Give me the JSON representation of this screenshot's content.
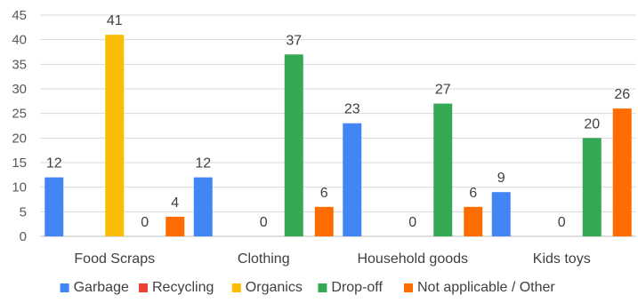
{
  "chart_data": {
    "type": "bar",
    "title": "",
    "xlabel": "",
    "ylabel": "",
    "ylim": [
      0,
      45
    ],
    "yticks": [
      0,
      5,
      10,
      15,
      20,
      25,
      30,
      35,
      40,
      45
    ],
    "grid": "horizontal",
    "legend_position": "bottom",
    "categories": [
      "Food Scraps",
      "Clothing",
      "Household goods",
      "Kids toys"
    ],
    "series": [
      {
        "name": "Garbage",
        "color": "#4285F4",
        "values": [
          12,
          12,
          23,
          9
        ]
      },
      {
        "name": "Recycling",
        "color": "#EA4335",
        "values": [
          null,
          null,
          null,
          null
        ]
      },
      {
        "name": "Organics",
        "color": "#FBBC04",
        "values": [
          41,
          0,
          0,
          0
        ]
      },
      {
        "name": "Drop-off",
        "color": "#34A853",
        "values": [
          0,
          37,
          27,
          20
        ]
      },
      {
        "name": "Not applicable / Other",
        "color": "#FF6D01",
        "values": [
          4,
          6,
          6,
          26
        ]
      }
    ],
    "data_labels": [
      {
        "text": "12"
      },
      {
        "text": "41"
      },
      {
        "text": "0"
      },
      {
        "text": "4"
      },
      {
        "text": "12"
      },
      {
        "text": "0"
      },
      {
        "text": "37"
      },
      {
        "text": "6"
      },
      {
        "text": "23"
      },
      {
        "text": "0"
      },
      {
        "text": "27"
      },
      {
        "text": "6"
      },
      {
        "text": "9"
      },
      {
        "text": "0"
      },
      {
        "text": "20"
      },
      {
        "text": "26"
      }
    ]
  }
}
